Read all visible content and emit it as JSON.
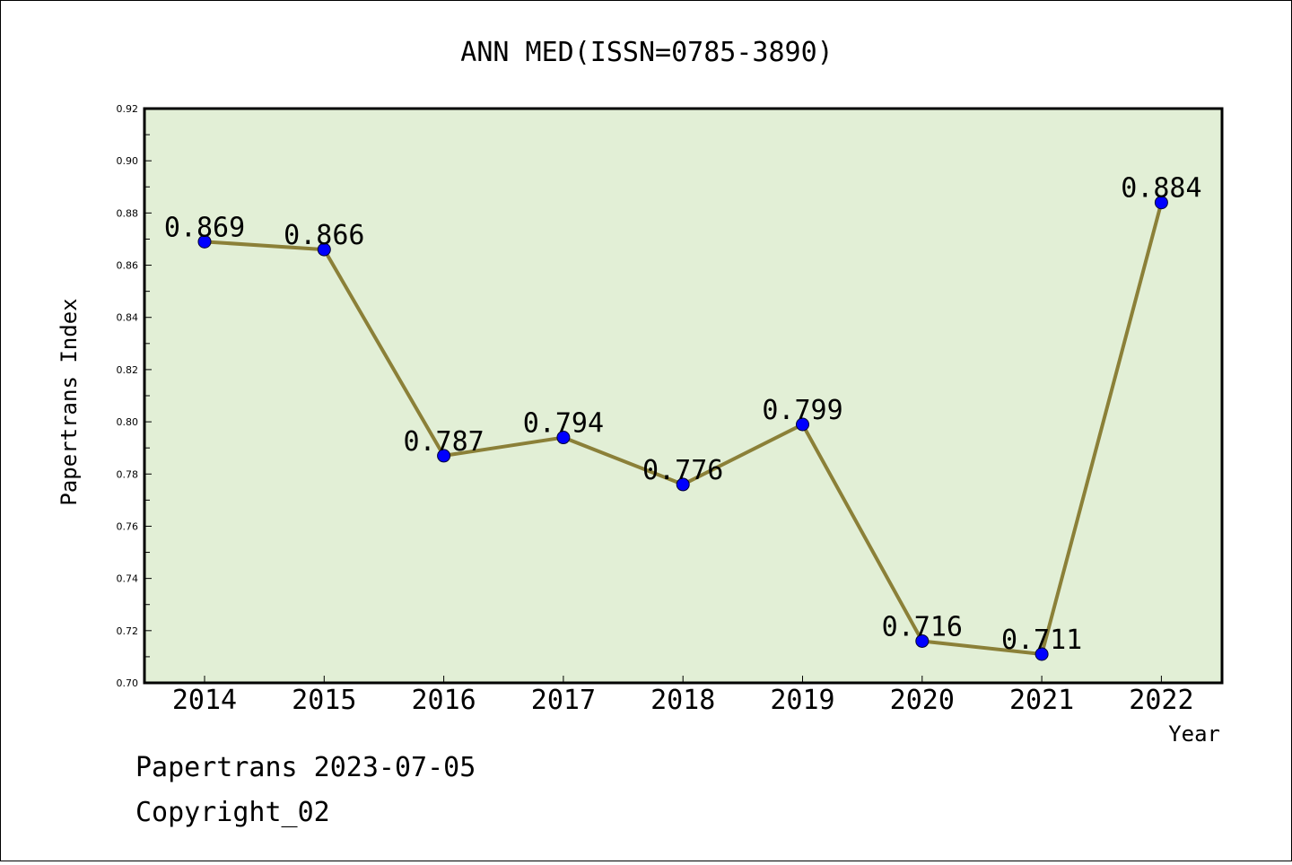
{
  "chart_data": {
    "type": "line",
    "title": "ANN MED(ISSN=0785-3890)",
    "xlabel": "Year",
    "ylabel": "Papertrans Index",
    "categories": [
      "2014",
      "2015",
      "2016",
      "2017",
      "2018",
      "2019",
      "2020",
      "2021",
      "2022"
    ],
    "series": [
      {
        "values": [
          0.869,
          0.866,
          0.787,
          0.794,
          0.776,
          0.799,
          0.716,
          0.711,
          0.884
        ],
        "data_labels": [
          "0.869",
          "0.866",
          "0.787",
          "0.794",
          "0.776",
          "0.799",
          "0.716",
          "0.711",
          "0.884"
        ]
      }
    ],
    "ylim": [
      0.7,
      0.92
    ],
    "yticks": [
      "0.70",
      "0.72",
      "0.74",
      "0.76",
      "0.78",
      "0.80",
      "0.82",
      "0.84",
      "0.86",
      "0.88",
      "0.90",
      "0.92"
    ],
    "grid": false,
    "colors": {
      "plot_background": "#e2efd6",
      "line": "#8b8038",
      "marker": "#0000ff"
    }
  },
  "footer": {
    "line1": "Papertrans 2023-07-05",
    "line2": "Copyright_02"
  }
}
